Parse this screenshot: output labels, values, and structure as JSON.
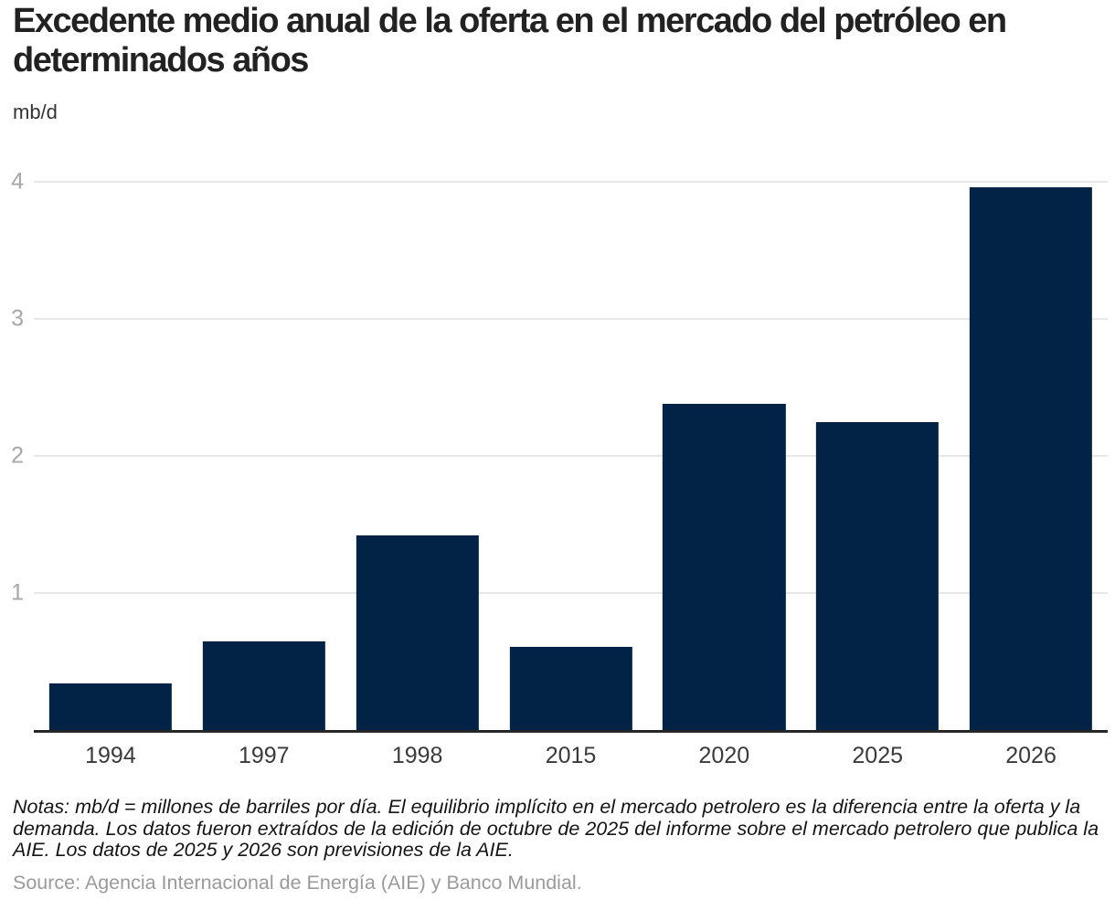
{
  "chart": {
    "title": "Excedente medio anual de la oferta en el mercado del petróleo en determinados años",
    "unit": "mb/d"
  },
  "chart_data": {
    "type": "bar",
    "title": "Excedente medio anual de la oferta en el mercado del petróleo en determinados años",
    "categories": [
      "1994",
      "1997",
      "1998",
      "2015",
      "2020",
      "2025",
      "2026"
    ],
    "values": [
      0.34,
      0.65,
      1.42,
      0.61,
      2.38,
      2.25,
      3.96
    ],
    "xlabel": "",
    "ylabel": "mb/d",
    "ylim": [
      0,
      4
    ],
    "yticks": [
      1,
      2,
      3,
      4
    ],
    "grid": true,
    "legend": "none",
    "bar_color": "#022345"
  },
  "colors": {
    "bar": "#022345",
    "gridline": "#e7e7e7",
    "axis_line": "#262626",
    "title_text": "#222222",
    "tick_label": "#a6a6a6",
    "category_label": "#3a3a3a",
    "notes_text": "#141414",
    "source_text": "#9a9a9a"
  },
  "footer": {
    "notes": "Notas: mb/d = millones de barriles por día. El equilibrio implícito en el mercado petrolero es la diferencia entre la oferta y la demanda. Los datos fueron extraídos de la edición de octubre de 2025 del informe sobre el mercado petrolero que publica la AIE. Los datos de 2025 y 2026 son previsiones de la AIE.",
    "source": "Source: Agencia Internacional de Energía (AIE) y Banco Mundial."
  }
}
